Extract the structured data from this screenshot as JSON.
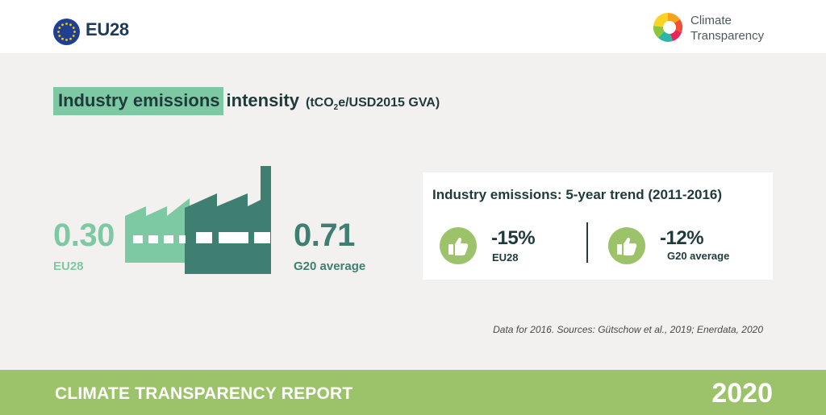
{
  "header": {
    "region": "EU28",
    "flag_icon": "eu-flag-icon",
    "logo": {
      "line1": "Climate",
      "line2": "Transparency"
    }
  },
  "title": {
    "highlight": "Industry emissions",
    "rest": "intensity",
    "unit_prefix": "(tCO",
    "unit_sub": "2",
    "unit_suffix": "e/USD2015 GVA)"
  },
  "intensity": {
    "eu": {
      "value": "0.30",
      "label": "EU28"
    },
    "g20": {
      "value": "0.71",
      "label": "G20 average"
    },
    "icon": "factory-icon"
  },
  "trend": {
    "title": "Industry emissions: 5-year trend (2011-2016)",
    "items": [
      {
        "value": "-15%",
        "label": "EU28",
        "icon": "thumbs-up-icon"
      },
      {
        "value": "-12%",
        "label": "G20 average",
        "icon": "thumbs-up-icon"
      }
    ]
  },
  "source": "Data for 2016. Sources: Gütschow et al., 2019; Enerdata, 2020",
  "footer": {
    "title": "CLIMATE TRANSPARENCY REPORT",
    "year": "2020"
  },
  "colors": {
    "light_green": "#7dc9a3",
    "dark_green": "#3e7f72",
    "lime": "#9dc36a",
    "navy": "#1e3a57",
    "background": "#f2f1ef"
  }
}
